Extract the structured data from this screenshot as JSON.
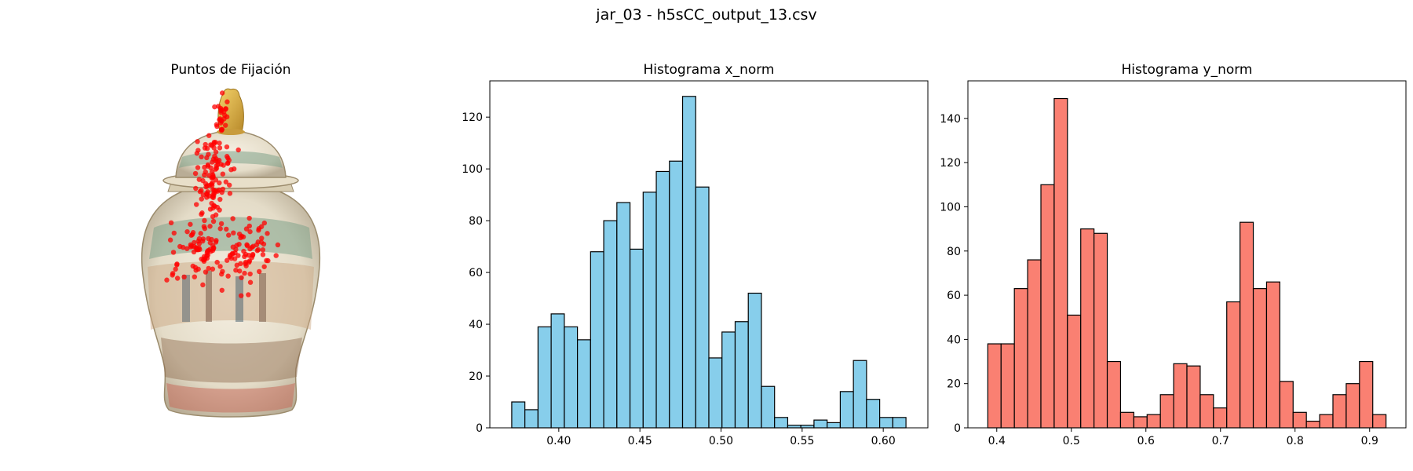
{
  "figure": {
    "suptitle": "jar_03 - h5sCC_output_13.csv"
  },
  "image_panel": {
    "title": "Puntos de Fijación",
    "image_subject": "porcelain ginger jar with lid",
    "marker_color": "#ff0000"
  },
  "chart_data": [
    {
      "type": "bar",
      "title": "Histograma x_norm",
      "xlabel": "",
      "ylabel": "",
      "bin_edges": [
        0.371,
        0.3791,
        0.3872,
        0.3953,
        0.4034,
        0.4115,
        0.4196,
        0.4277,
        0.4358,
        0.4439,
        0.452,
        0.4601,
        0.4682,
        0.4763,
        0.4844,
        0.4925,
        0.5006,
        0.5087,
        0.5168,
        0.5249,
        0.533,
        0.5411,
        0.5492,
        0.5573,
        0.5654,
        0.5735,
        0.5816,
        0.5897,
        0.5978,
        0.6059,
        0.614
      ],
      "values": [
        10,
        7,
        39,
        44,
        39,
        34,
        68,
        80,
        87,
        69,
        91,
        99,
        103,
        128,
        93,
        27,
        37,
        41,
        52,
        16,
        4,
        1,
        1,
        3,
        2,
        14,
        26,
        11,
        4,
        4
      ],
      "xlim": [
        0.3575,
        0.6275
      ],
      "ylim": [
        0,
        134
      ],
      "xticks": [
        0.4,
        0.45,
        0.5,
        0.55,
        0.6
      ],
      "xtick_labels": [
        "0.40",
        "0.45",
        "0.50",
        "0.55",
        "0.60"
      ],
      "yticks": [
        0,
        20,
        40,
        60,
        80,
        100,
        120
      ],
      "ytick_labels": [
        "0",
        "20",
        "40",
        "60",
        "80",
        "100",
        "120"
      ],
      "bar_color": "#87ceeb",
      "edge_color": "#000000",
      "grid": false
    },
    {
      "type": "bar",
      "title": "Histograma y_norm",
      "xlabel": "",
      "ylabel": "",
      "bin_edges": [
        0.388,
        0.4058,
        0.4236,
        0.4414,
        0.4592,
        0.477,
        0.4948,
        0.5126,
        0.5304,
        0.5482,
        0.566,
        0.5838,
        0.6016,
        0.6194,
        0.6372,
        0.655,
        0.6728,
        0.6906,
        0.7084,
        0.7262,
        0.744,
        0.7618,
        0.7796,
        0.7974,
        0.8152,
        0.833,
        0.8508,
        0.8686,
        0.8864,
        0.9042,
        0.922
      ],
      "values": [
        38,
        38,
        63,
        76,
        110,
        149,
        51,
        90,
        88,
        30,
        7,
        5,
        6,
        15,
        29,
        28,
        15,
        9,
        57,
        93,
        63,
        66,
        21,
        7,
        3,
        6,
        15,
        20,
        30,
        6
      ],
      "xlim": [
        0.3613,
        0.9487
      ],
      "ylim": [
        0,
        157
      ],
      "xticks": [
        0.4,
        0.5,
        0.6,
        0.7,
        0.8,
        0.9
      ],
      "xtick_labels": [
        "0.4",
        "0.5",
        "0.6",
        "0.7",
        "0.8",
        "0.9"
      ],
      "yticks": [
        0,
        20,
        40,
        60,
        80,
        100,
        120,
        140
      ],
      "ytick_labels": [
        "0",
        "20",
        "40",
        "60",
        "80",
        "100",
        "120",
        "140"
      ],
      "bar_color": "#fa8072",
      "edge_color": "#000000",
      "grid": false
    }
  ]
}
